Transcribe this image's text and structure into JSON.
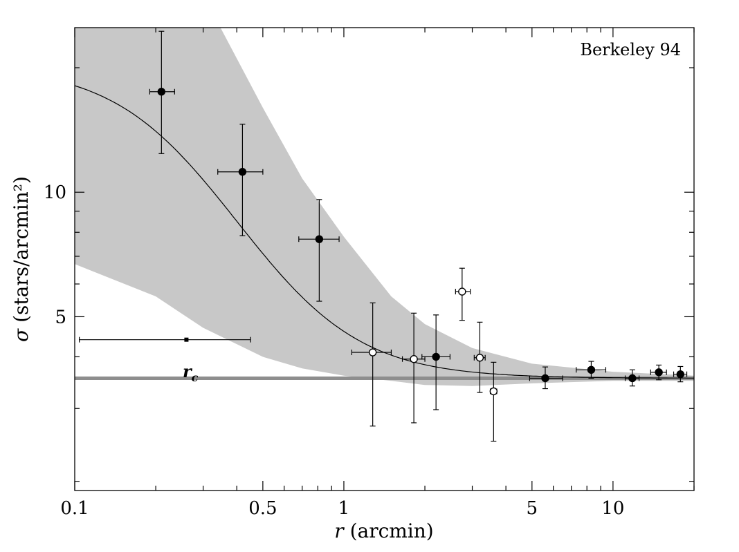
{
  "chart_data": {
    "type": "scatter",
    "title": "",
    "annotation": "Berkeley 94",
    "xlabel_var": "r",
    "xlabel_unit": " (arcmin)",
    "ylabel_var": "σ",
    "ylabel_unit": " (stars/arcmin²)",
    "x_scale": "log",
    "y_scale": "log",
    "xlim": [
      0.1,
      20
    ],
    "ylim": [
      1.9,
      25
    ],
    "x_ticks": [
      {
        "value": 0.1,
        "label": "0.1"
      },
      {
        "value": 0.5,
        "label": "0.5"
      },
      {
        "value": 1,
        "label": "1"
      },
      {
        "value": 5,
        "label": "5"
      },
      {
        "value": 10,
        "label": "10"
      }
    ],
    "y_ticks": [
      {
        "value": 5,
        "label": "5"
      },
      {
        "value": 10,
        "label": "10"
      }
    ],
    "grid": false,
    "legend": "none",
    "background_level": 3.55,
    "profile_fit": {
      "sigma_bg": 3.55,
      "sigma_0": 16.7,
      "r_c": 0.26
    },
    "confidence_band": {
      "x": [
        0.1,
        0.2,
        0.3,
        0.5,
        0.7,
        1.0,
        1.5,
        2.0,
        3.0,
        5.0,
        10.0,
        20.0
      ],
      "lower": [
        6.7,
        5.6,
        4.7,
        4.0,
        3.75,
        3.6,
        3.5,
        3.42,
        3.4,
        3.45,
        3.5,
        3.5
      ],
      "upper": [
        30,
        30,
        30,
        16.0,
        10.8,
        7.8,
        5.6,
        4.8,
        4.2,
        3.85,
        3.68,
        3.6
      ]
    },
    "core_radius_marker": {
      "label": "r",
      "label_sub": "c",
      "value": 0.26,
      "xerr_low": 0.104,
      "xerr_high": 0.45,
      "y": 4.4
    },
    "series": [
      {
        "marker": "filled",
        "points": [
          {
            "x": 0.21,
            "y": 17.5,
            "xlo": 0.19,
            "xhi": 0.235,
            "ylo": 12.4,
            "yhi": 24.5
          },
          {
            "x": 0.42,
            "y": 11.2,
            "xlo": 0.34,
            "xhi": 0.5,
            "ylo": 7.85,
            "yhi": 14.6
          },
          {
            "x": 0.81,
            "y": 7.7,
            "xlo": 0.68,
            "xhi": 0.96,
            "ylo": 5.45,
            "yhi": 9.6
          },
          {
            "x": 2.2,
            "y": 4.0,
            "xlo": 1.95,
            "xhi": 2.48,
            "ylo": 2.98,
            "yhi": 5.05
          },
          {
            "x": 5.6,
            "y": 3.55,
            "xlo": 4.9,
            "xhi": 6.5,
            "ylo": 3.35,
            "yhi": 3.78
          },
          {
            "x": 8.3,
            "y": 3.72,
            "xlo": 7.3,
            "xhi": 9.4,
            "ylo": 3.55,
            "yhi": 3.9
          },
          {
            "x": 11.8,
            "y": 3.55,
            "xlo": 11.1,
            "xhi": 12.5,
            "ylo": 3.4,
            "yhi": 3.72
          },
          {
            "x": 14.8,
            "y": 3.67,
            "xlo": 13.8,
            "xhi": 15.8,
            "ylo": 3.52,
            "yhi": 3.82
          },
          {
            "x": 17.8,
            "y": 3.63,
            "xlo": 16.8,
            "xhi": 18.8,
            "ylo": 3.48,
            "yhi": 3.79
          }
        ]
      },
      {
        "marker": "open",
        "points": [
          {
            "x": 1.28,
            "y": 4.1,
            "xlo": 1.07,
            "xhi": 1.5,
            "ylo": 2.72,
            "yhi": 5.4
          },
          {
            "x": 1.82,
            "y": 3.95,
            "xlo": 1.65,
            "xhi": 2.0,
            "ylo": 2.77,
            "yhi": 5.1
          },
          {
            "x": 2.75,
            "y": 5.75,
            "xlo": 2.6,
            "xhi": 2.95,
            "ylo": 4.9,
            "yhi": 6.55
          },
          {
            "x": 3.2,
            "y": 3.98,
            "xlo": 3.05,
            "xhi": 3.35,
            "ylo": 3.28,
            "yhi": 4.85
          },
          {
            "x": 3.6,
            "y": 3.3,
            "xlo": 3.5,
            "xhi": 3.7,
            "ylo": 2.5,
            "yhi": 3.88
          }
        ]
      }
    ],
    "colors": {
      "band": "#c8c8c8",
      "background_line": "#8e8e8e",
      "curve": "#000000",
      "points": "#000000"
    }
  }
}
